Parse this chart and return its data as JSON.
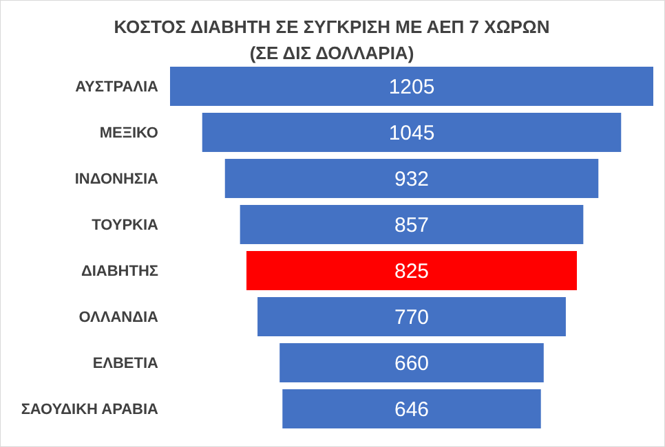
{
  "chart_data": {
    "type": "other",
    "title": "ΚΟΣΤΟΣ ΔΙΑΒΗΤΗ ΣΕ ΣΥΓΚΡΙΣΗ ΜΕ ΑΕΠ 7 ΧΩΡΩΝ\n(ΣΕ ΔΙΣ ΔΟΛΛΑΡΙΑ)",
    "categories": [
      "ΑΥΣΤΡΑΛΙΑ",
      "ΜΕΞΙΚΟ",
      "ΙΝΔΟΝΗΣΙΑ",
      "ΤΟΥΡΚΙΑ",
      "ΔΙΑΒΗΤΗΣ",
      "ΟΛΛΑΝΔΙΑ",
      "ΕΛΒΕΤΙΑ",
      "ΣΑΟΥΔΙΚΗ ΑΡΑΒΙΑ"
    ],
    "values": [
      1205,
      1045,
      932,
      857,
      825,
      770,
      660,
      646
    ],
    "colors": [
      "#4472c4",
      "#4472c4",
      "#4472c4",
      "#4472c4",
      "#ff0000",
      "#4472c4",
      "#4472c4",
      "#4472c4"
    ],
    "data_labels": true
  }
}
